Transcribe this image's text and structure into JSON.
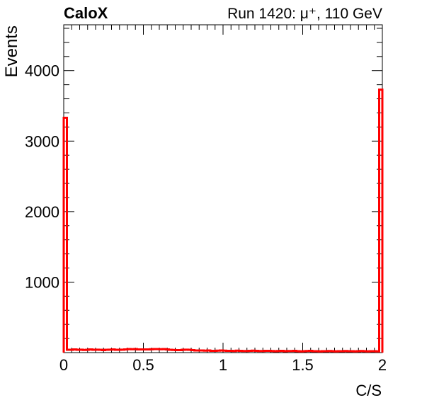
{
  "chart_data": {
    "type": "histogram",
    "experiment_label": "CaloX",
    "run_label": "Run 1420: μ⁺, 110 GeV",
    "xlabel": "C/S",
    "ylabel": "Events",
    "xlim": [
      0,
      2
    ],
    "ylim": [
      0,
      4650
    ],
    "x_ticks": [
      "0",
      "0.5",
      "1",
      "1.5",
      "2"
    ],
    "y_ticks": [
      "1000",
      "2000",
      "3000",
      "4000"
    ],
    "x_tick_values": [
      0,
      0.5,
      1,
      1.5,
      2
    ],
    "y_tick_values": [
      1000,
      2000,
      3000,
      4000
    ],
    "line_color": "#ff0000",
    "bin_width": 0.02,
    "values": [
      3330,
      40,
      40,
      45,
      40,
      42,
      38,
      40,
      45,
      40,
      42,
      40,
      35,
      40,
      42,
      45,
      40,
      40,
      42,
      45,
      50,
      48,
      50,
      45,
      45,
      45,
      45,
      48,
      50,
      50,
      48,
      50,
      45,
      40,
      38,
      35,
      35,
      40,
      42,
      40,
      35,
      30,
      30,
      30,
      28,
      30,
      25,
      25,
      28,
      30,
      28,
      25,
      25,
      22,
      28,
      25,
      22,
      22,
      25,
      28,
      25,
      22,
      22,
      25,
      25,
      22,
      20,
      22,
      25,
      20,
      22,
      22,
      25,
      20,
      18,
      20,
      22,
      25,
      20,
      20,
      18,
      20,
      20,
      22,
      20,
      18,
      20,
      20,
      22,
      20,
      20,
      18,
      20,
      22,
      20,
      18,
      20,
      20,
      18,
      3730
    ]
  }
}
